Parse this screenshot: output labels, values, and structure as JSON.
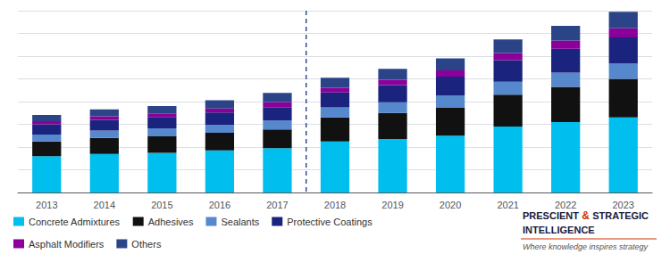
{
  "chart_data": {
    "type": "bar",
    "stacked": true,
    "categories": [
      "2013",
      "2014",
      "2015",
      "2016",
      "2017",
      "2018",
      "2019",
      "2020",
      "2021",
      "2022",
      "2023"
    ],
    "series": [
      {
        "name": "Concrete Admixtures",
        "color": "#00BFEE",
        "values": [
          3.2,
          3.4,
          3.5,
          3.7,
          3.9,
          4.5,
          4.7,
          5.0,
          5.8,
          6.2,
          6.6
        ]
      },
      {
        "name": "Adhesives",
        "color": "#111111",
        "values": [
          1.3,
          1.4,
          1.45,
          1.55,
          1.65,
          2.1,
          2.3,
          2.5,
          2.8,
          3.1,
          3.4
        ]
      },
      {
        "name": "Sealants",
        "color": "#5588CC",
        "values": [
          0.6,
          0.65,
          0.7,
          0.72,
          0.78,
          0.9,
          0.95,
          1.05,
          1.15,
          1.25,
          1.35
        ]
      },
      {
        "name": "Protective Coatings",
        "color": "#1A237E",
        "values": [
          0.9,
          0.95,
          1.0,
          1.07,
          1.15,
          1.3,
          1.5,
          1.65,
          1.9,
          2.1,
          2.3
        ]
      },
      {
        "name": "Asphalt Modifiers",
        "color": "#8B009A",
        "values": [
          0.28,
          0.3,
          0.28,
          0.35,
          0.48,
          0.42,
          0.48,
          0.55,
          0.62,
          0.72,
          0.8
        ]
      },
      {
        "name": "Others",
        "color": "#2B4488",
        "values": [
          0.55,
          0.62,
          0.67,
          0.73,
          0.8,
          0.88,
          0.95,
          1.05,
          1.2,
          1.3,
          1.45
        ]
      }
    ],
    "ylim": [
      0,
      16
    ],
    "yticks": [
      0,
      2,
      4,
      6,
      8,
      10,
      12,
      14,
      16
    ],
    "grid": true,
    "tick_labels": "x",
    "legend": "bottom left",
    "reference_line": {
      "between": [
        "2017",
        "2018"
      ],
      "color": "#2B4D8E",
      "line_style": "dashed"
    },
    "annotations": [
      "PRESCIENT",
      "&",
      "STRATEGIC",
      "INTELLIGENCE",
      "Where knowledge inspires strategy"
    ]
  }
}
